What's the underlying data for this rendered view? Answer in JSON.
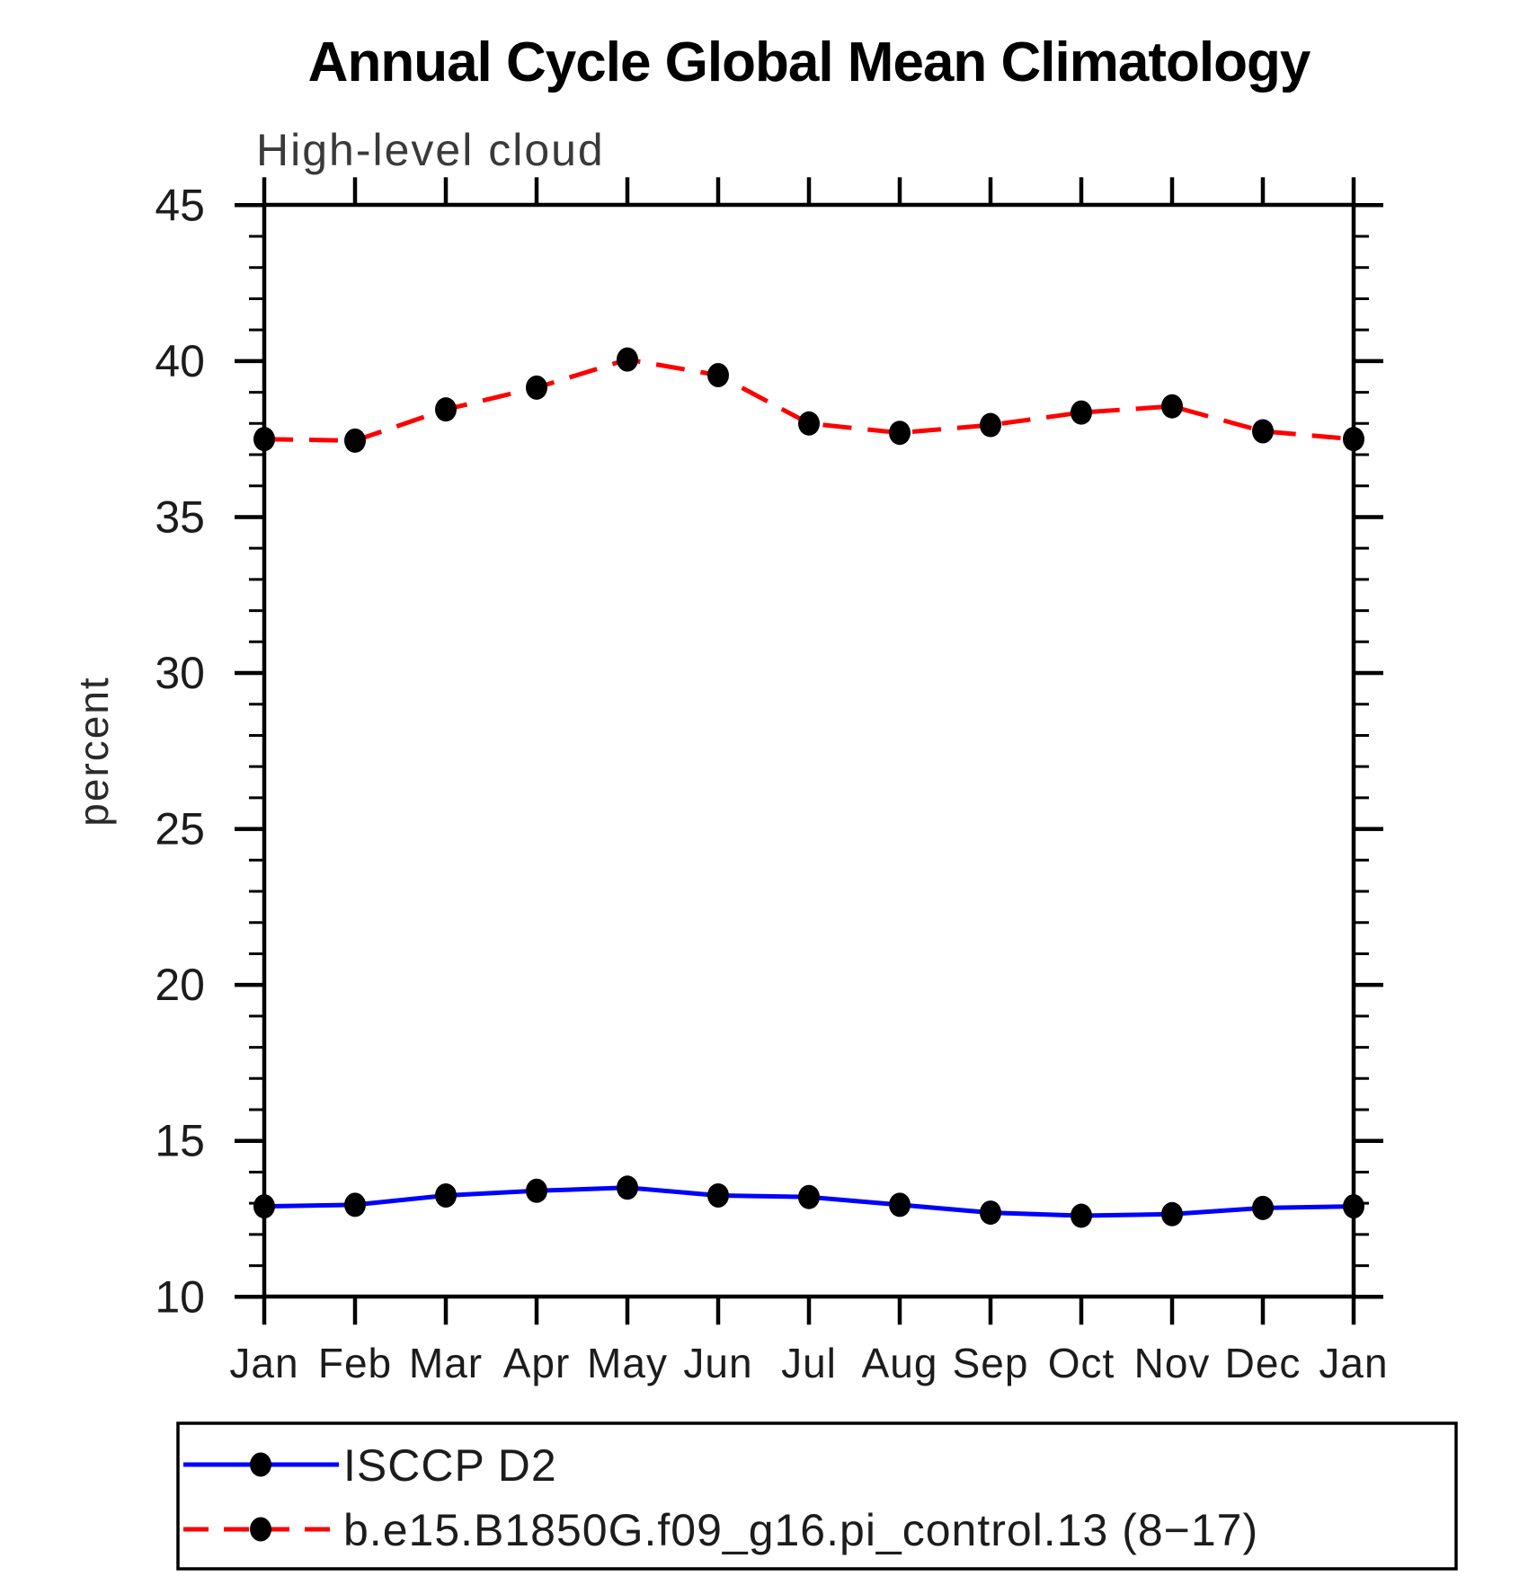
{
  "page": {
    "background_color": "#ffffff",
    "text_color": "#1c1c1c"
  },
  "chart_data": {
    "type": "line",
    "title": "Annual Cycle Global Mean Climatology",
    "subtitle": "High-level cloud",
    "xlabel": "",
    "ylabel": "percent",
    "categories": [
      "Jan",
      "Feb",
      "Mar",
      "Apr",
      "May",
      "Jun",
      "Jul",
      "Aug",
      "Sep",
      "Oct",
      "Nov",
      "Dec",
      "Jan"
    ],
    "ylim": [
      10,
      45
    ],
    "ytick_major_step": 5,
    "ytick_minor_step": 1,
    "ytick_major_labels": [
      "10",
      "15",
      "20",
      "25",
      "30",
      "35",
      "40",
      "45"
    ],
    "grid": false,
    "legend_position": "bottom-left",
    "series": [
      {
        "name": "ISCCP D2",
        "color": "#0000ff",
        "line_style": "solid",
        "marker": "filled-circle",
        "marker_color": "#000000",
        "values": [
          12.9,
          12.95,
          13.25,
          13.4,
          13.5,
          13.25,
          13.2,
          12.95,
          12.7,
          12.6,
          12.65,
          12.85,
          12.9
        ]
      },
      {
        "name": "b.e15.B1850G.f09_g16.pi_control.13 (8−17)",
        "color": "#ff0000",
        "line_style": "dashed",
        "marker": "filled-circle",
        "marker_color": "#000000",
        "values": [
          37.5,
          37.45,
          38.45,
          39.15,
          40.05,
          39.55,
          38.0,
          37.7,
          37.95,
          38.35,
          38.55,
          37.75,
          37.5
        ]
      }
    ]
  }
}
